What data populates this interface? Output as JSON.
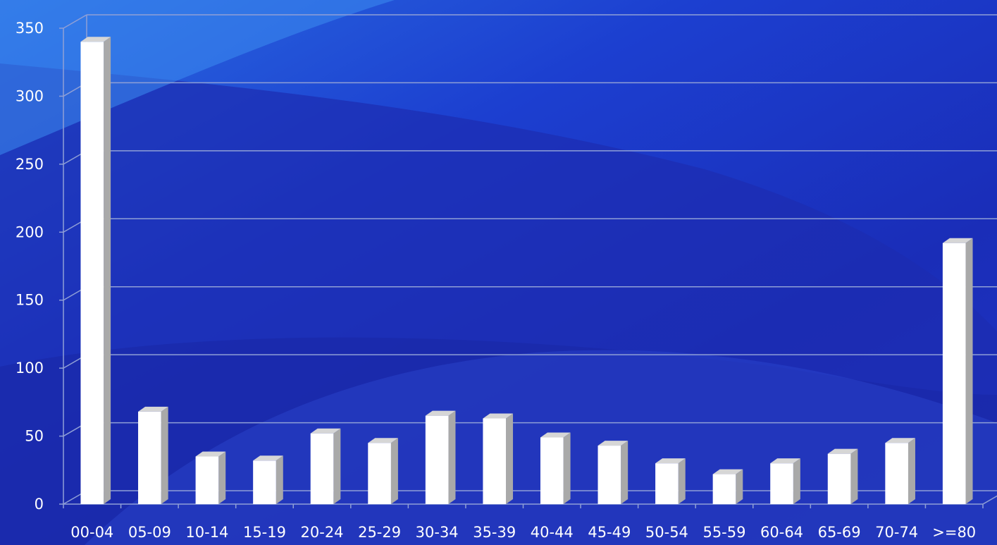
{
  "chart_data": {
    "type": "bar",
    "style": "3d-column",
    "categories": [
      "00-04",
      "05-09",
      "10-14",
      "15-19",
      "20-24",
      "25-29",
      "30-34",
      "35-39",
      "40-44",
      "45-49",
      "50-54",
      "55-59",
      "60-64",
      "65-69",
      "70-74",
      ">=80"
    ],
    "values": [
      340,
      68,
      35,
      32,
      52,
      45,
      65,
      63,
      49,
      43,
      30,
      22,
      30,
      37,
      45,
      192
    ],
    "ylim": [
      0,
      350
    ],
    "yticks": [
      0,
      50,
      100,
      150,
      200,
      250,
      300,
      350
    ],
    "ytick_labels": [
      "0",
      "50",
      "100",
      "150",
      "200",
      "250",
      "300",
      "350"
    ],
    "title": "",
    "xlabel": "",
    "ylabel": "",
    "grid": true,
    "legend": "none",
    "colors": {
      "bar_front": "#ffffff",
      "bar_side": "#a9a9a9",
      "bar_top": "#d6d6d6",
      "background": "#1a2fb8",
      "gridline": "#8f9fd6",
      "text": "#ffffff"
    }
  }
}
